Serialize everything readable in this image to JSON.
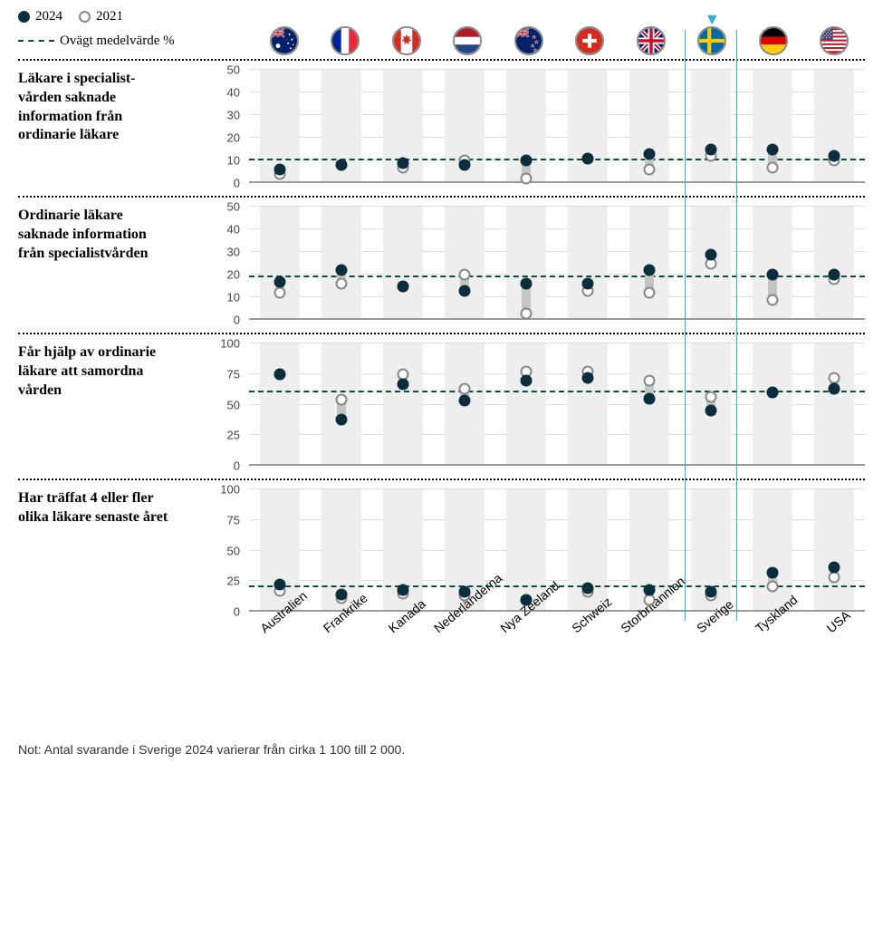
{
  "legend": {
    "y2024": "2024",
    "y2021": "2021",
    "mean_label": "Ovägt medelvärde  %"
  },
  "colors": {
    "point_2024": "#0a2e3d",
    "point_2021_border": "#888888",
    "point_2021_fill": "#ffffff",
    "mean_line": "#0a4d3d",
    "band": "#eeeeee",
    "connector": "#c5c5c5",
    "highlight": "#2db0e0",
    "grid": "#dddddd",
    "baseline": "#999999"
  },
  "countries": [
    {
      "id": "au",
      "label": "Australien"
    },
    {
      "id": "fr",
      "label": "Frankrike"
    },
    {
      "id": "ca",
      "label": "Kanada"
    },
    {
      "id": "nl",
      "label": "Nederländerna"
    },
    {
      "id": "nz",
      "label": "Nya Zeeland"
    },
    {
      "id": "ch",
      "label": "Schweiz"
    },
    {
      "id": "gb",
      "label": "Storbritannien"
    },
    {
      "id": "se",
      "label": "Sverige"
    },
    {
      "id": "de",
      "label": "Tyskland"
    },
    {
      "id": "us",
      "label": "USA"
    }
  ],
  "highlight_country": "se",
  "panels": [
    {
      "title": "Läkare i specialist-vården saknade information från ordinarie läkare",
      "ymin": 0,
      "ymax": 50,
      "ystep": 10,
      "mean": 10,
      "data": {
        "au": {
          "v2024": 6,
          "v2021": 4
        },
        "fr": {
          "v2024": 8,
          "v2021": 8
        },
        "ca": {
          "v2024": 9,
          "v2021": 7
        },
        "nl": {
          "v2024": 8,
          "v2021": 10
        },
        "nz": {
          "v2024": 10,
          "v2021": 2
        },
        "ch": {
          "v2024": 11,
          "v2021": 11
        },
        "gb": {
          "v2024": 13,
          "v2021": 6
        },
        "se": {
          "v2024": 15,
          "v2021": 12
        },
        "de": {
          "v2024": 15,
          "v2021": 7
        },
        "us": {
          "v2024": 12,
          "v2021": 10
        }
      }
    },
    {
      "title": "Ordinarie läkare saknade information från specialistvården",
      "ymin": 0,
      "ymax": 50,
      "ystep": 10,
      "mean": 19,
      "data": {
        "au": {
          "v2024": 17,
          "v2021": 12
        },
        "fr": {
          "v2024": 22,
          "v2021": 16
        },
        "ca": {
          "v2024": 15,
          "v2021": 15
        },
        "nl": {
          "v2024": 13,
          "v2021": 20
        },
        "nz": {
          "v2024": 16,
          "v2021": 3
        },
        "ch": {
          "v2024": 16,
          "v2021": 13
        },
        "gb": {
          "v2024": 22,
          "v2021": 12
        },
        "se": {
          "v2024": 29,
          "v2021": 25
        },
        "de": {
          "v2024": 20,
          "v2021": 9
        },
        "us": {
          "v2024": 20,
          "v2021": 18
        }
      }
    },
    {
      "title": "Får hjälp av ordinarie läkare att samordna vården",
      "ymin": 0,
      "ymax": 100,
      "ystep": 25,
      "mean": 60,
      "data": {
        "au": {
          "v2024": 75,
          "v2021": 75
        },
        "fr": {
          "v2024": 38,
          "v2021": 54
        },
        "ca": {
          "v2024": 67,
          "v2021": 75
        },
        "nl": {
          "v2024": 53,
          "v2021": 63
        },
        "nz": {
          "v2024": 70,
          "v2021": 77
        },
        "ch": {
          "v2024": 72,
          "v2021": 77
        },
        "gb": {
          "v2024": 55,
          "v2021": 70
        },
        "se": {
          "v2024": 45,
          "v2021": 56
        },
        "de": {
          "v2024": 60,
          "v2021": 60
        },
        "us": {
          "v2024": 63,
          "v2021": 72
        }
      }
    },
    {
      "title": "Har träffat 4 eller fler olika läkare senaste året",
      "ymin": 0,
      "ymax": 100,
      "ystep": 25,
      "mean": 20,
      "data": {
        "au": {
          "v2024": 22,
          "v2021": 17
        },
        "fr": {
          "v2024": 14,
          "v2021": 11
        },
        "ca": {
          "v2024": 18,
          "v2021": 15
        },
        "nl": {
          "v2024": 16,
          "v2021": 13
        },
        "nz": {
          "v2024": 10,
          "v2021": 10
        },
        "ch": {
          "v2024": 19,
          "v2021": 16
        },
        "gb": {
          "v2024": 18,
          "v2021": 10
        },
        "se": {
          "v2024": 16,
          "v2021": 13
        },
        "de": {
          "v2024": 32,
          "v2021": 21
        },
        "us": {
          "v2024": 36,
          "v2021": 28
        }
      }
    }
  ],
  "footnote": "Not: Antal svarande i Sverige 2024 varierar från cirka 1 100 till 2 000."
}
